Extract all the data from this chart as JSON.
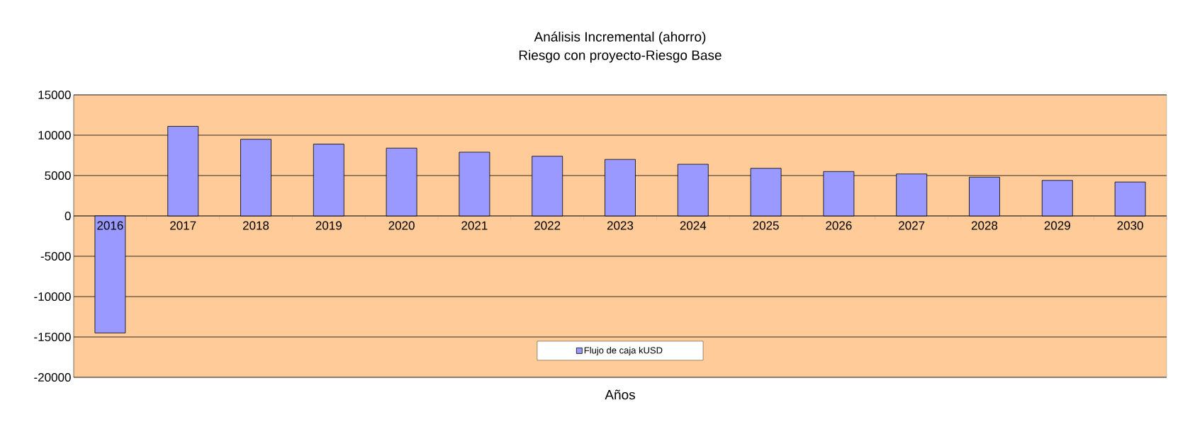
{
  "chart_data": {
    "type": "bar",
    "title": "Análisis Incremental (ahorro)",
    "subtitle": "Riesgo con proyecto-Riesgo Base",
    "xlabel": "Años",
    "categories": [
      "2016",
      "2017",
      "2018",
      "2019",
      "2020",
      "2021",
      "2022",
      "2023",
      "2024",
      "2025",
      "2026",
      "2027",
      "2028",
      "2029",
      "2030"
    ],
    "series": [
      {
        "name": "Flujo de caja kUSD",
        "color": "#9999ff",
        "values": [
          -14500,
          11100,
          9500,
          8900,
          8400,
          7900,
          7400,
          7000,
          6400,
          5900,
          5500,
          5200,
          4800,
          4400,
          4200
        ]
      }
    ],
    "ylim": [
      -20000,
      15000
    ],
    "yticks": [
      -20000,
      -15000,
      -10000,
      -5000,
      0,
      5000,
      10000,
      15000
    ],
    "grid": "y",
    "legend": "bottom"
  }
}
